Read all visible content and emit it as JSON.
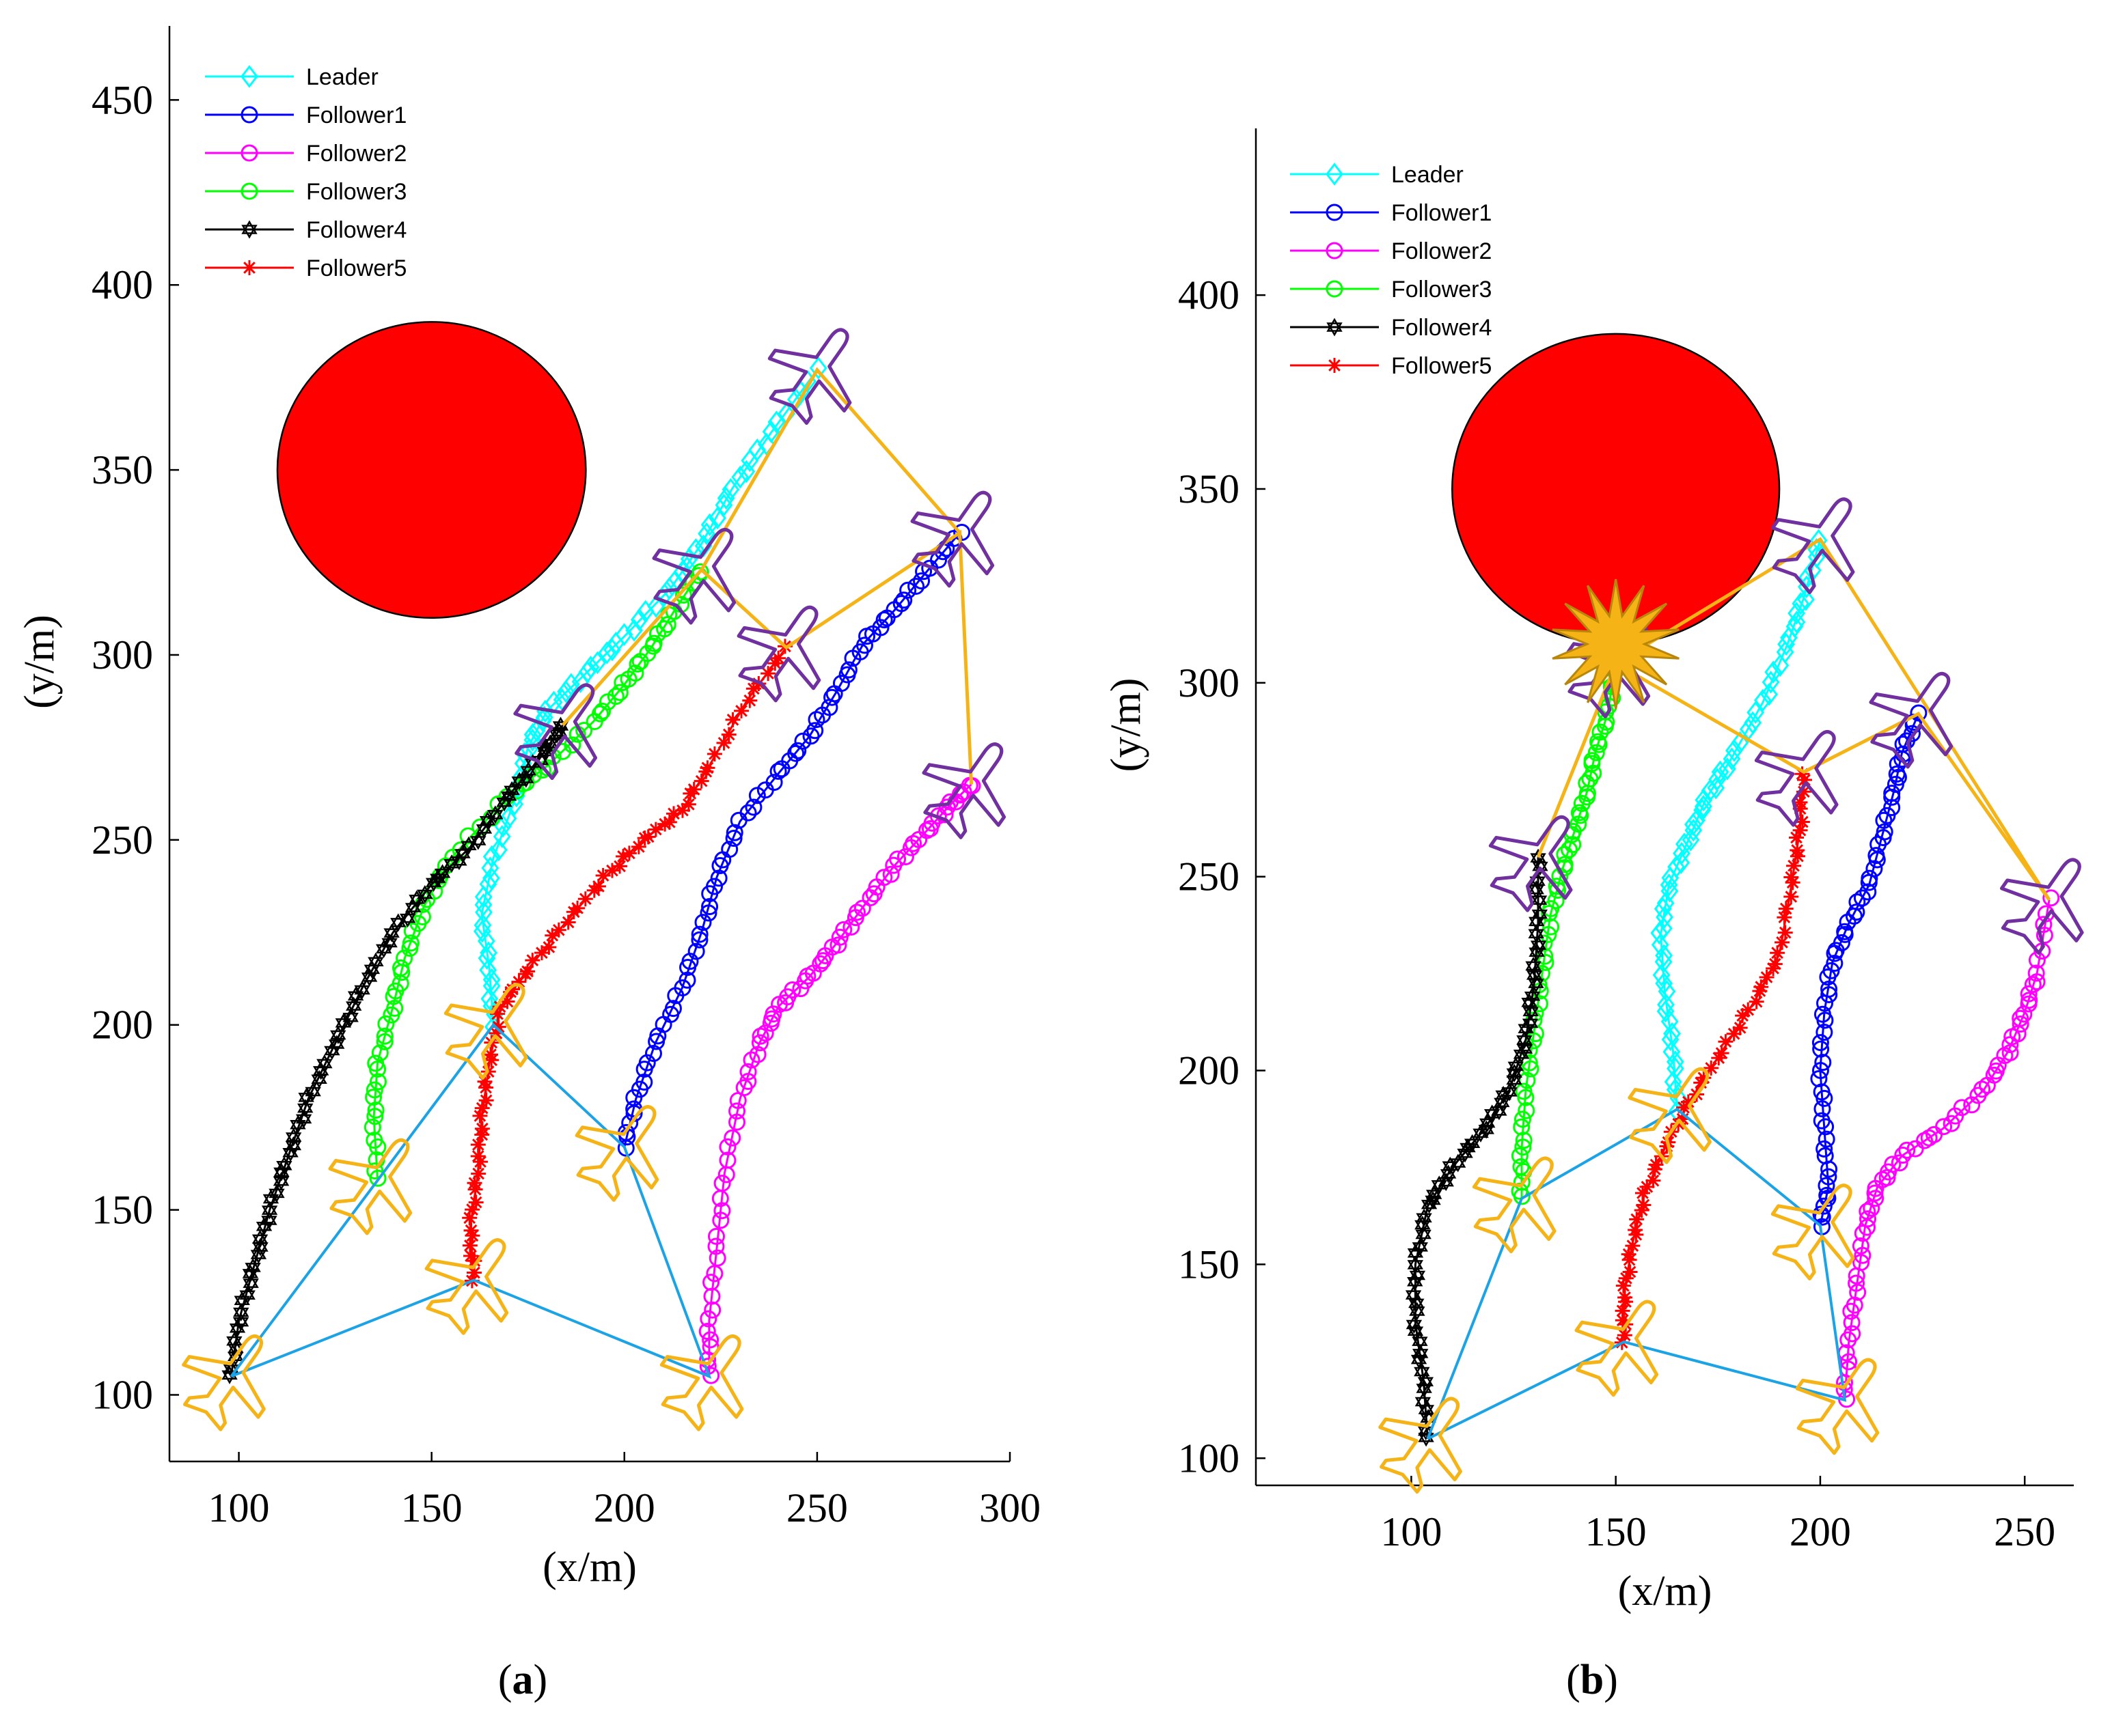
{
  "chart_data": [
    {
      "type": "line",
      "panel_label": "a",
      "xlabel": "(x/m)",
      "ylabel": "(y/m)",
      "xlim": [
        82,
        300
      ],
      "ylim": [
        82,
        470
      ],
      "xticks": [
        100,
        150,
        200,
        250,
        300
      ],
      "yticks": [
        100,
        150,
        200,
        250,
        300,
        350,
        400,
        450
      ],
      "legend": [
        "Leader",
        "Follower1",
        "Follower2",
        "Follower3",
        "Follower4",
        "Follower5"
      ],
      "obstacle": {
        "cx": 150,
        "cy": 350,
        "r": 40,
        "color": "#ff0000"
      },
      "series": [
        {
          "name": "Leader",
          "color": "#00ffff",
          "marker": "diamond",
          "x": [
            166,
            165,
            163,
            166,
            172,
            175,
            180,
            190,
            200,
            212,
            220,
            228,
            238,
            250
          ],
          "y": [
            200,
            215,
            230,
            245,
            262,
            275,
            285,
            295,
            305,
            318,
            330,
            345,
            360,
            377
          ]
        },
        {
          "name": "Follower1",
          "color": "#0000ff",
          "marker": "circle",
          "x": [
            200,
            203,
            208,
            215,
            220,
            224,
            230,
            240,
            248,
            255,
            262,
            270,
            278,
            287
          ],
          "y": [
            167,
            180,
            195,
            210,
            225,
            240,
            255,
            268,
            278,
            290,
            303,
            312,
            322,
            333
          ]
        },
        {
          "name": "Follower2",
          "color": "#ff00ff",
          "marker": "circle",
          "x": [
            222,
            222,
            224,
            226,
            230,
            235,
            240,
            248,
            255,
            262,
            270,
            278,
            285,
            290
          ],
          "y": [
            105,
            120,
            140,
            160,
            180,
            195,
            205,
            213,
            222,
            232,
            243,
            252,
            260,
            265
          ]
        },
        {
          "name": "Follower3",
          "color": "#00ff00",
          "marker": "circle",
          "x": [
            136,
            135,
            136,
            140,
            143,
            148,
            155,
            170,
            180,
            192,
            200,
            207,
            213,
            220
          ],
          "y": [
            158,
            175,
            190,
            205,
            218,
            232,
            245,
            262,
            270,
            282,
            292,
            302,
            312,
            323
          ]
        },
        {
          "name": "Follower4",
          "color": "#000000",
          "marker": "hexagram",
          "x": [
            98,
            100,
            104,
            108,
            113,
            118,
            125,
            132,
            140,
            150,
            160,
            170,
            178,
            184
          ],
          "y": [
            105,
            120,
            135,
            150,
            165,
            180,
            195,
            210,
            225,
            238,
            248,
            262,
            272,
            281
          ]
        },
        {
          "name": "Follower5",
          "color": "#ff0000",
          "marker": "asterisk",
          "x": [
            161,
            160,
            162,
            163,
            165,
            168,
            175,
            185,
            195,
            205,
            215,
            222,
            232,
            242
          ],
          "y": [
            131,
            145,
            160,
            175,
            190,
            205,
            215,
            228,
            240,
            250,
            258,
            270,
            288,
            302
          ]
        }
      ],
      "formation_start": {
        "color": "#1ba3e6",
        "x": [
          98,
          136,
          166,
          200,
          222,
          161,
          98
        ],
        "y": [
          105,
          158,
          200,
          167,
          105,
          131,
          105
        ]
      },
      "formation_end": {
        "color": "#f5b315",
        "x": [
          184,
          220,
          250,
          287,
          290,
          287,
          242,
          220,
          184
        ],
        "y": [
          281,
          323,
          377,
          333,
          265,
          333,
          302,
          323,
          281
        ]
      },
      "aircraft_start": {
        "color": "#f5b315",
        "x": [
          98,
          136,
          166,
          200,
          222,
          161
        ],
        "y": [
          105,
          158,
          200,
          167,
          105,
          131
        ]
      },
      "aircraft_end": {
        "color": "#7030a0",
        "x": [
          250,
          287,
          290,
          220,
          184,
          242
        ],
        "y": [
          377,
          333,
          265,
          323,
          281,
          302
        ]
      }
    },
    {
      "type": "line",
      "panel_label": "b",
      "xlabel": "(x/m)",
      "ylabel": "(y/m)",
      "xlim": [
        62,
        262
      ],
      "ylim": [
        93,
        443
      ],
      "xticks": [
        100,
        150,
        200,
        250
      ],
      "yticks": [
        100,
        150,
        200,
        250,
        300,
        350,
        400
      ],
      "legend": [
        "Leader",
        "Follower1",
        "Follower2",
        "Follower3",
        "Follower4",
        "Follower5"
      ],
      "obstacle": {
        "cx": 150,
        "cy": 350,
        "r": 40,
        "color": "#ff0000"
      },
      "collision": {
        "x": 150,
        "y": 310,
        "color": "#f5b315"
      },
      "series": [
        {
          "name": "Leader",
          "color": "#00ffff",
          "marker": "diamond",
          "x": [
            165,
            164,
            162,
            161,
            163,
            168,
            172,
            178,
            186,
            192,
            196,
            200
          ],
          "y": [
            190,
            205,
            220,
            235,
            248,
            260,
            270,
            280,
            295,
            310,
            322,
            337
          ]
        },
        {
          "name": "Follower1",
          "color": "#0000ff",
          "marker": "circle",
          "x": [
            200,
            202,
            201,
            200,
            201,
            203,
            207,
            212,
            215,
            218,
            220,
            224
          ],
          "y": [
            160,
            170,
            185,
            200,
            215,
            228,
            238,
            248,
            260,
            272,
            282,
            292
          ]
        },
        {
          "name": "Follower2",
          "color": "#ff00ff",
          "marker": "circle",
          "x": [
            206,
            207,
            209,
            211,
            214,
            220,
            230,
            240,
            246,
            250,
            253,
            256
          ],
          "y": [
            115,
            130,
            145,
            160,
            170,
            178,
            185,
            195,
            205,
            215,
            225,
            244
          ]
        },
        {
          "name": "Follower3",
          "color": "#00ff00",
          "marker": "circle",
          "x": [
            127,
            127,
            128,
            130,
            132,
            134,
            137,
            140,
            143,
            145,
            148,
            150
          ],
          "y": [
            167,
            180,
            195,
            210,
            225,
            240,
            252,
            262,
            272,
            282,
            292,
            305
          ]
        },
        {
          "name": "Follower4",
          "color": "#000000",
          "marker": "hexagram",
          "x": [
            104,
            103,
            101,
            101,
            104,
            110,
            118,
            124,
            128,
            130,
            131,
            131
          ],
          "y": [
            105,
            120,
            135,
            150,
            165,
            175,
            185,
            195,
            208,
            222,
            238,
            255
          ]
        },
        {
          "name": "Follower5",
          "color": "#ff0000",
          "marker": "asterisk",
          "x": [
            152,
            152,
            154,
            157,
            162,
            168,
            176,
            184,
            190,
            193,
            195,
            196
          ],
          "y": [
            130,
            142,
            155,
            168,
            180,
            192,
            205,
            218,
            230,
            248,
            262,
            277
          ]
        }
      ],
      "formation_start": {
        "color": "#1ba3e6",
        "x": [
          104,
          127,
          165,
          200,
          206,
          152,
          104
        ],
        "y": [
          105,
          167,
          190,
          160,
          115,
          130,
          105
        ]
      },
      "formation_end": {
        "color": "#f5b315",
        "x": [
          131,
          150,
          200,
          256,
          224,
          196,
          150,
          131
        ],
        "y": [
          255,
          305,
          337,
          244,
          292,
          277,
          305,
          255
        ]
      },
      "aircraft_start": {
        "color": "#f5b315",
        "x": [
          104,
          127,
          165,
          200,
          206,
          152
        ],
        "y": [
          105,
          167,
          190,
          160,
          115,
          130
        ]
      },
      "aircraft_end": {
        "color": "#7030a0",
        "x": [
          200,
          224,
          256,
          150,
          131,
          196
        ],
        "y": [
          337,
          292,
          244,
          305,
          255,
          277
        ]
      }
    }
  ]
}
